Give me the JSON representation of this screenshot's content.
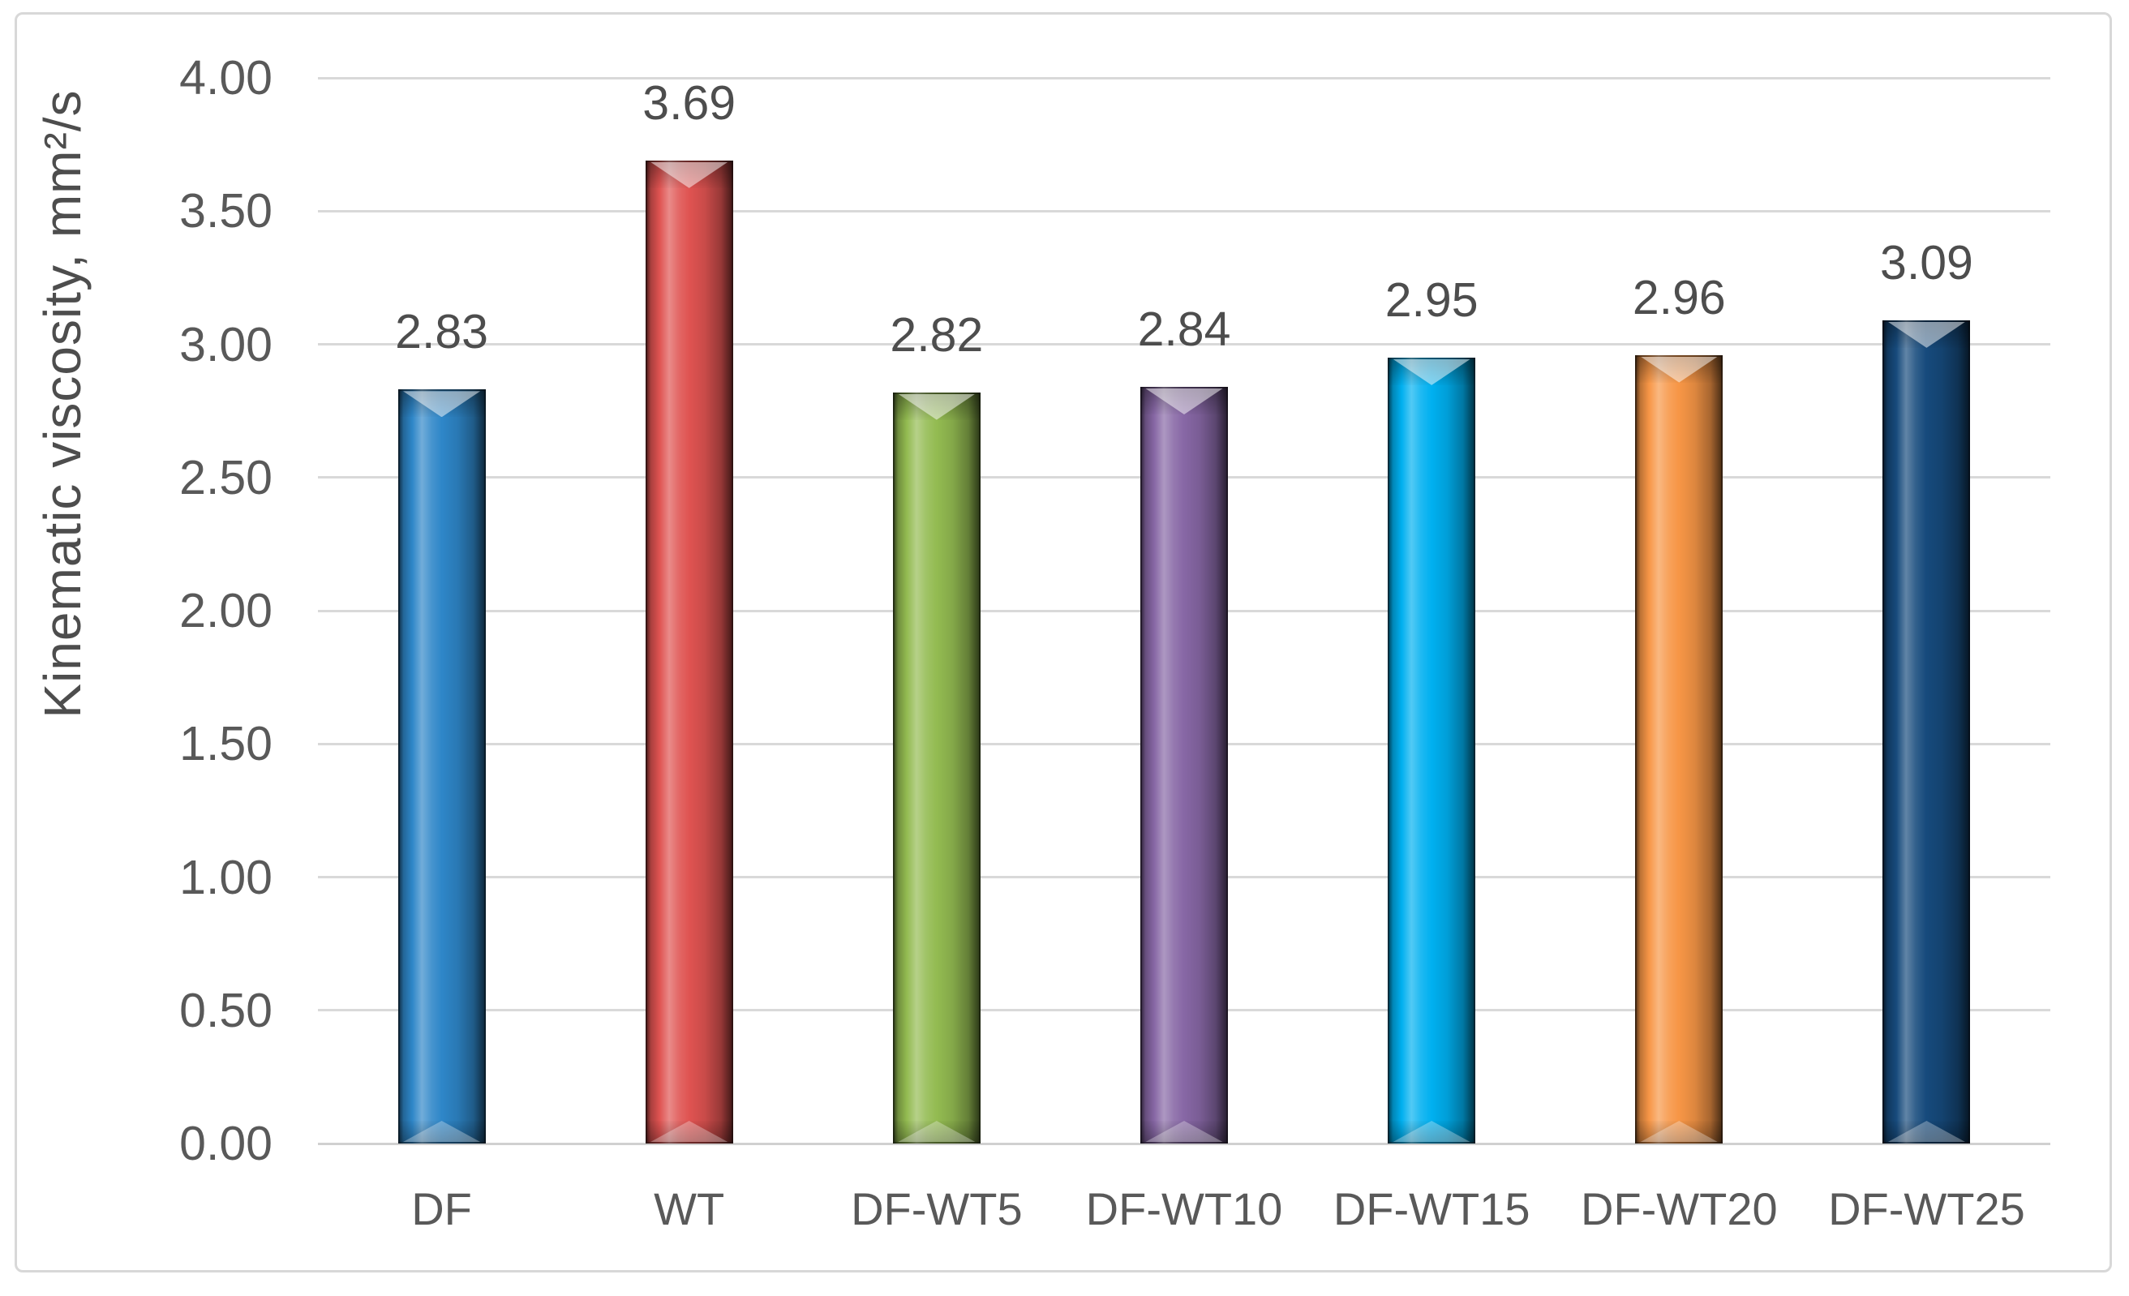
{
  "chart_data": {
    "type": "bar",
    "title": "",
    "ylabel": "Kinematic viscosity, mm²/s",
    "xlabel": "",
    "categories": [
      "DF",
      "WT",
      "DF-WT5",
      "DF-WT10",
      "DF-WT15",
      "DF-WT20",
      "DF-WT25"
    ],
    "values": [
      2.83,
      3.69,
      2.82,
      2.84,
      2.95,
      2.96,
      3.09
    ],
    "data_labels": [
      "2.83",
      "3.69",
      "2.82",
      "2.84",
      "2.95",
      "2.96",
      "3.09"
    ],
    "bar_colors": [
      "#2E86C8",
      "#DF5351",
      "#93BB51",
      "#8767A5",
      "#00B0F0",
      "#F79646",
      "#164A7C"
    ],
    "ylim": [
      0,
      4
    ],
    "ytick_step": 0.5,
    "yticks": [
      "0.00",
      "0.50",
      "1.00",
      "1.50",
      "2.00",
      "2.50",
      "3.00",
      "3.50",
      "4.00"
    ],
    "grid": true,
    "legend_position": "none",
    "bar_style_3d_bevel": true,
    "colors": {
      "gridline": "#D9D9D9",
      "axis_line": "#D0D0D0",
      "tick_label": "#595959",
      "data_label": "#4D4D4D",
      "axis_title": "#4D4D4D",
      "frame_border": "#D8D8D8",
      "background": "#FFFFFF"
    }
  }
}
